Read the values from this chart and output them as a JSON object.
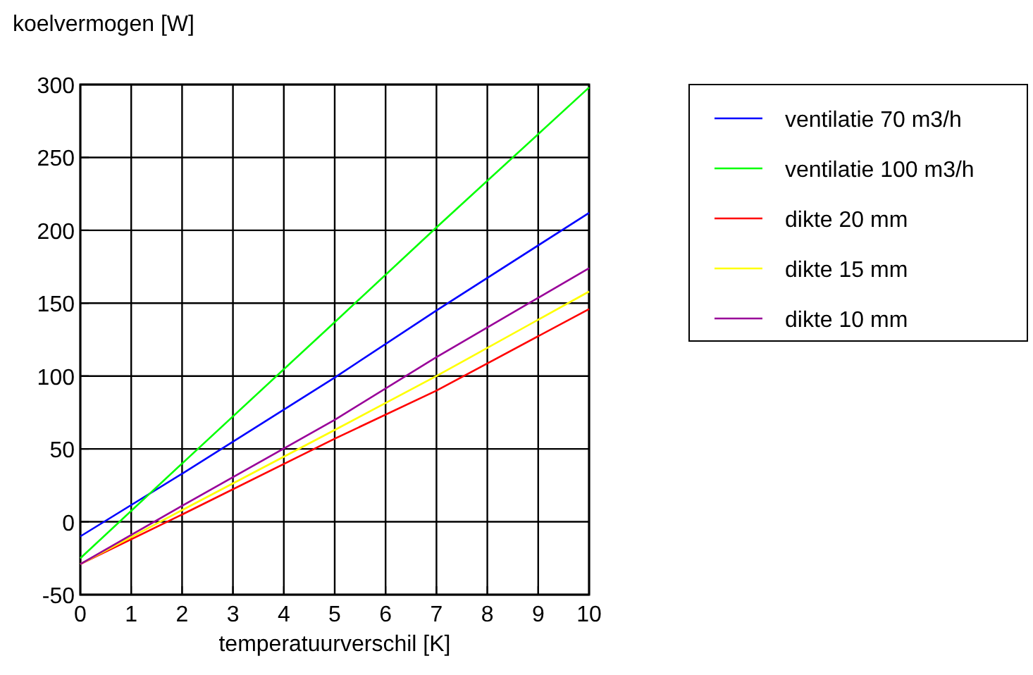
{
  "chart_data": {
    "type": "line",
    "ylabel": "koelvermogen [W]",
    "xlabel": "temperatuurverschil [K]",
    "x": [
      0,
      2,
      5,
      7,
      10
    ],
    "series": [
      {
        "name": "ventilatie 70 m3/h",
        "color": "#0000ff",
        "values": [
          -10,
          33,
          99,
          145,
          212
        ]
      },
      {
        "name": "ventilatie 100 m3/h",
        "color": "#00ff00",
        "values": [
          -25,
          40,
          137,
          202,
          298
        ]
      },
      {
        "name": "dikte 20 mm",
        "color": "#ff0000",
        "values": [
          -29,
          5,
          57,
          90,
          146
        ]
      },
      {
        "name": "dikte 15 mm",
        "color": "#ffff00",
        "values": [
          -29,
          8,
          63,
          100,
          158
        ]
      },
      {
        "name": "dikte 10 mm",
        "color": "#990099",
        "values": [
          -29,
          11,
          70,
          113,
          174
        ]
      }
    ],
    "xlim": [
      0,
      10
    ],
    "xticks": [
      0,
      1,
      2,
      3,
      4,
      5,
      6,
      7,
      8,
      9,
      10
    ],
    "ylim": [
      -50,
      300
    ],
    "yticks": [
      -50,
      0,
      50,
      100,
      150,
      200,
      250,
      300
    ],
    "grid": true,
    "legend": "top right",
    "marker": "none",
    "line_style": "solid"
  }
}
